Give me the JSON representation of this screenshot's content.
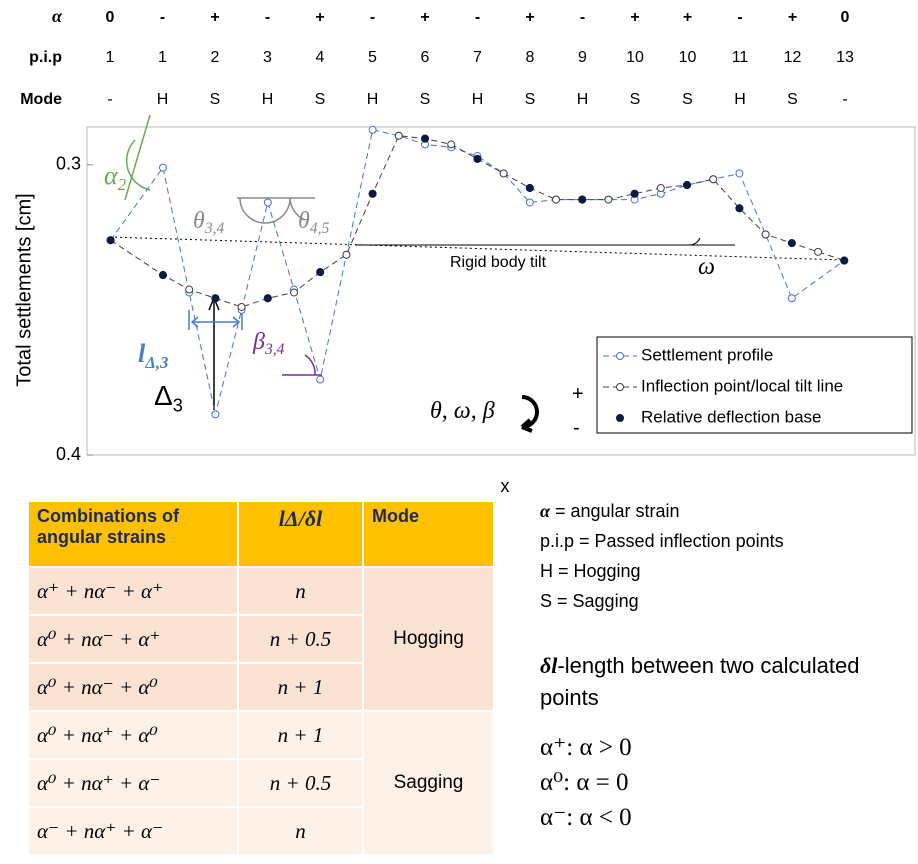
{
  "header": {
    "row_labels": [
      "α",
      "p.i.p",
      "Mode"
    ],
    "alpha": [
      "0",
      "-",
      "+",
      "-",
      "+",
      "-",
      "+",
      "-",
      "+",
      "-",
      "+",
      "+",
      "-",
      "+",
      "0"
    ],
    "pip": [
      "1",
      "1",
      "2",
      "3",
      "4",
      "5",
      "6",
      "7",
      "8",
      "9",
      "10",
      "10",
      "11",
      "12",
      "13"
    ],
    "mode": [
      "-",
      "H",
      "S",
      "H",
      "S",
      "H",
      "S",
      "H",
      "S",
      "H",
      "S",
      "S",
      "H",
      "S",
      "-"
    ]
  },
  "chart_data": {
    "type": "line",
    "y_label": "Total settlements [cm]",
    "x_label": "x",
    "xlim": [
      -0.9,
      30.7
    ],
    "ylim": [
      0.4,
      0.287
    ],
    "yticks": [
      0.3,
      0.4
    ],
    "series": [
      {
        "name": "Settlement profile",
        "color": "#4a6fd6",
        "marker": "open",
        "line": "dashed",
        "x": [
          0,
          2,
          3,
          4,
          5,
          6,
          7,
          8,
          9,
          10,
          11,
          12,
          13,
          14,
          15,
          16,
          17,
          18,
          19,
          20,
          21,
          22,
          23,
          24,
          25,
          26,
          28
        ],
        "values": [
          0.326,
          0.301,
          0.344,
          0.386,
          0.35,
          0.313,
          0.343,
          0.374,
          0.331,
          0.288,
          0.29,
          0.293,
          0.294,
          0.297,
          0.303,
          0.313,
          0.312,
          0.312,
          0.312,
          0.312,
          0.31,
          0.307,
          0.305,
          0.303,
          0.324,
          0.346,
          0.333
        ]
      },
      {
        "name": "Inflection point/local tilt line",
        "color": "#404040",
        "marker": "open",
        "line": "dashed",
        "x": [
          0,
          2,
          3,
          4,
          5,
          6,
          7,
          8,
          9,
          10,
          11,
          12,
          13,
          14,
          15,
          16,
          17,
          18,
          19,
          20,
          21,
          22,
          23,
          24,
          25,
          26,
          27,
          28
        ],
        "values": [
          0.326,
          0.338,
          0.343,
          0.346,
          0.349,
          0.346,
          0.344,
          0.337,
          0.331,
          0.31,
          0.29,
          0.291,
          0.293,
          0.298,
          0.303,
          0.308,
          0.312,
          0.312,
          0.312,
          0.31,
          0.308,
          0.307,
          0.305,
          0.315,
          0.324,
          0.327,
          0.33,
          0.333
        ]
      },
      {
        "name": "Relative deflection base",
        "color": "#0d1b3e",
        "marker": "filled",
        "line": "none",
        "x": [
          0,
          2,
          4,
          6,
          8,
          10,
          12,
          14,
          16,
          18,
          20,
          22,
          24,
          26,
          28
        ],
        "values": [
          0.326,
          0.338,
          0.346,
          0.346,
          0.337,
          0.31,
          0.291,
          0.298,
          0.308,
          0.312,
          0.31,
          0.307,
          0.315,
          0.327,
          0.333
        ]
      }
    ],
    "annotations": [
      {
        "text": "α",
        "sub": "2",
        "color": "#6aab4b"
      },
      {
        "text": "θ",
        "sub": "3,4",
        "color": "#8a8a8a"
      },
      {
        "text": "θ",
        "sub": "4,5",
        "color": "#8a8a8a"
      },
      {
        "text": "Rigid body tilt",
        "color": "#000000"
      },
      {
        "text": "ω",
        "color": "#000000"
      },
      {
        "text": "l",
        "sub": "Δ,3",
        "color": "#4a7fc4"
      },
      {
        "text": "Δ",
        "sub": "3",
        "color": "#000000"
      },
      {
        "text": "β",
        "sub": "3,4",
        "color": "#7030a0"
      },
      {
        "text": "θ, ω, β",
        "color": "#000000"
      },
      {
        "text": "+",
        "color": "#000000"
      },
      {
        "text": "-",
        "color": "#000000"
      }
    ]
  },
  "table": {
    "header": [
      "Combinations of angular strains",
      "lΔ/δl",
      "Mode"
    ],
    "rows": [
      [
        "α⁺ + nα⁻ + α⁺",
        "n"
      ],
      [
        "α⁰ + nα⁻ + α⁺",
        "n + 0.5"
      ],
      [
        "α⁰ + nα⁻ + α⁰",
        "n + 1"
      ],
      [
        "α⁰ + nα⁺ + α⁰",
        "n + 1"
      ],
      [
        "α⁰ + nα⁺ + α⁻",
        "n + 0.5"
      ],
      [
        "α⁻ + nα⁺ + α⁻",
        "n"
      ]
    ],
    "modes": [
      "Hogging",
      "Sagging"
    ]
  },
  "notes": {
    "definitions": [
      {
        "term": "α",
        "definition": " = angular strain"
      },
      {
        "term": "p.i.p",
        "definition": " = Passed inflection points"
      },
      {
        "term": "H",
        "definition": " = Hogging"
      },
      {
        "term": "S",
        "definition": " = Sagging"
      }
    ],
    "delta": {
      "term": "δl",
      "definition": "-length between two calculated points"
    },
    "conditions": [
      "α⁺: α > 0",
      "α⁰: α = 0",
      "α⁻: α < 0"
    ]
  }
}
